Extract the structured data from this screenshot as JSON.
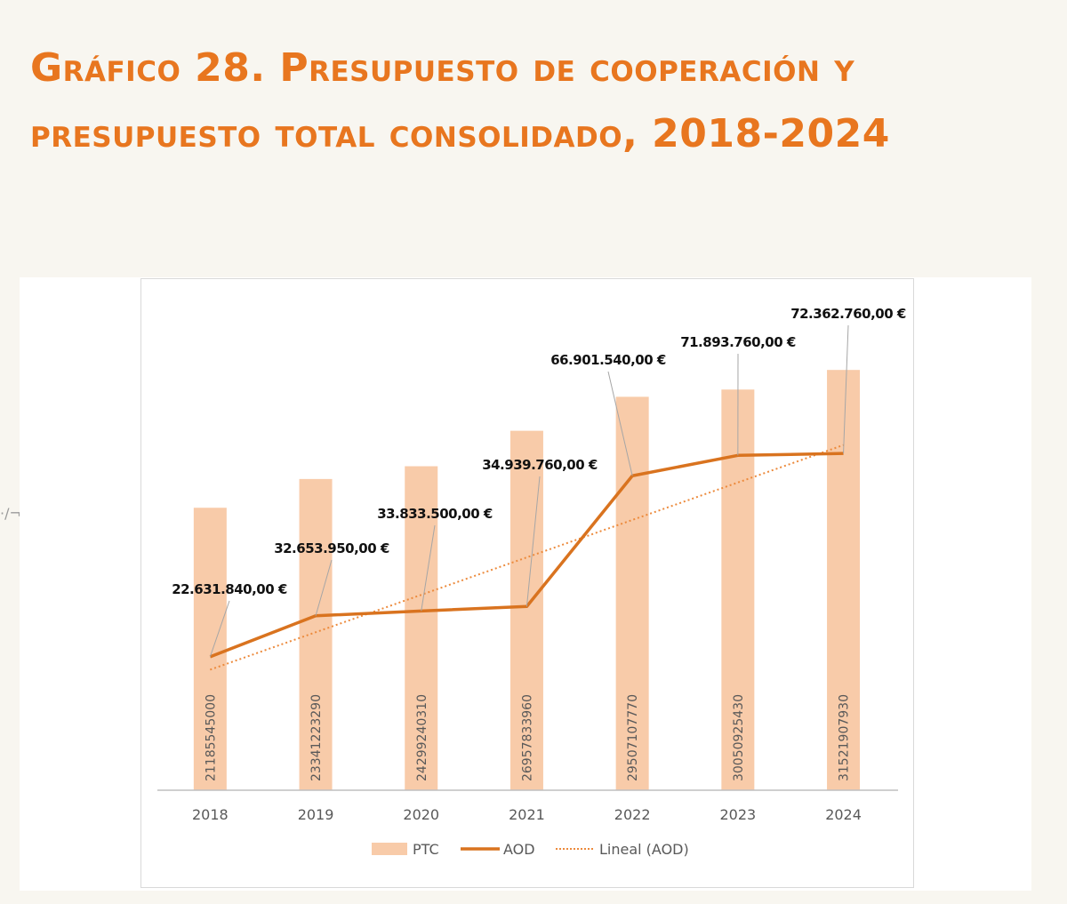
{
  "title": "Gráfico 28. Presupuesto de cooperación y presupuesto total consolidado, 2018-2024",
  "margin_mark": "·/¬",
  "colors": {
    "title": "#e8761f",
    "ptc_bar": "#f8cba9",
    "aod_line": "#d9731f",
    "trend_line": "#ec8a3c",
    "axis": "#bfbfbf",
    "text": "#111111",
    "tick_text": "#595959",
    "bar_label": "#595959"
  },
  "chart_data": {
    "type": "bar",
    "categories": [
      "2018",
      "2019",
      "2020",
      "2021",
      "2022",
      "2023",
      "2024"
    ],
    "series": [
      {
        "name": "PTC",
        "type": "bar",
        "values": [
          21185545000,
          23341223290,
          24299240310,
          26957833960,
          29507107770,
          30050925430,
          31521907930
        ],
        "value_labels": [
          "21185545000",
          "23341223290",
          "24299240310",
          "26957833960",
          "29507107770",
          "30050925430",
          "31521907930"
        ]
      },
      {
        "name": "AOD",
        "type": "line",
        "values": [
          22631840,
          32653950,
          33833500,
          34939760,
          66901540,
          71893760,
          72362760
        ],
        "value_labels": [
          "22.631.840,00 €",
          "32.653.950,00 €",
          "33.833.500,00 €",
          "34.939.760,00 €",
          "66.901.540,00 €",
          "71.893.760,00 €",
          "72.362.760,00 €"
        ]
      },
      {
        "name": "Lineal (AOD)",
        "type": "trendline",
        "values": [
          19480000,
          28635000,
          37790000,
          46945000,
          56100000,
          65255000,
          74410000
        ]
      }
    ],
    "legend": {
      "position": "bottom",
      "entries": [
        "PTC",
        "AOD",
        "Lineal (AOD)"
      ]
    },
    "grid": false
  }
}
